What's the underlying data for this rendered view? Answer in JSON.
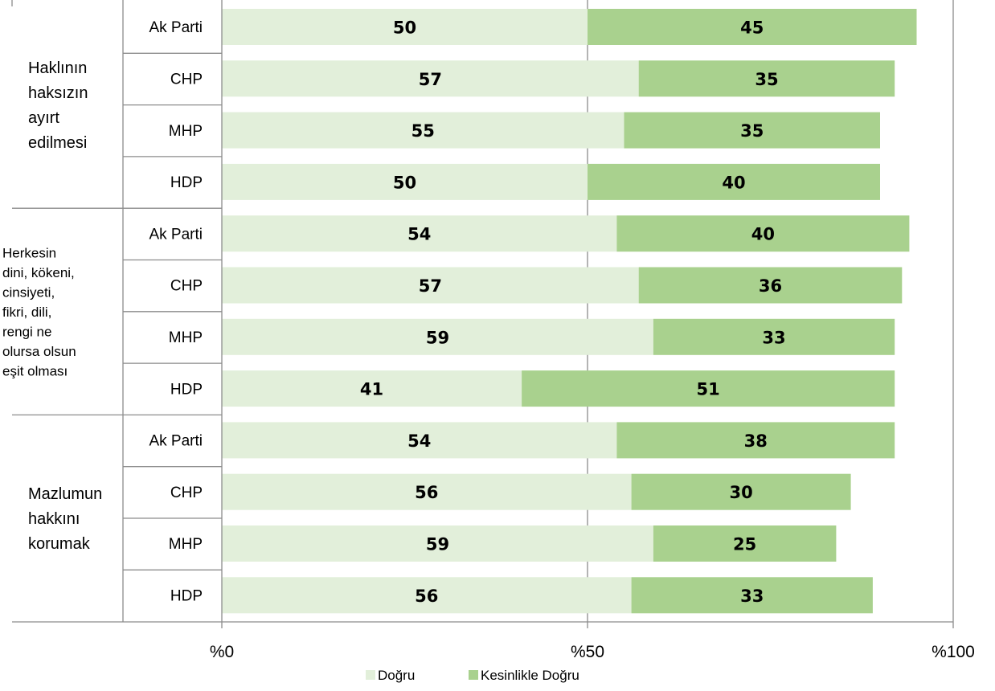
{
  "chart_data": {
    "type": "bar",
    "orientation": "horizontal",
    "stacked": true,
    "groups": [
      {
        "label_lines": [
          "Haklının",
          "haksızın",
          "ayırt",
          "edilmesi"
        ],
        "categories": [
          "Ak Parti",
          "CHP",
          "MHP",
          "HDP"
        ]
      },
      {
        "label_lines": [
          "Herkesin",
          "dini, kökeni,",
          "cinsiyeti,",
          "fikri, dili,",
          "rengi ne",
          "olursa olsun",
          "eşit olması"
        ],
        "categories": [
          "Ak Parti",
          "CHP",
          "MHP",
          "HDP"
        ]
      },
      {
        "label_lines": [
          "Mazlumun",
          "hakkını",
          "korumak"
        ],
        "categories": [
          "Ak Parti",
          "CHP",
          "MHP",
          "HDP"
        ]
      }
    ],
    "series": [
      {
        "name": "Doğru",
        "color": "#e2efda",
        "values": [
          50,
          57,
          55,
          50,
          54,
          57,
          59,
          41,
          54,
          56,
          59,
          56
        ]
      },
      {
        "name": "Kesinlikle Doğru",
        "color": "#a9d18e",
        "values": [
          45,
          35,
          35,
          40,
          40,
          36,
          33,
          51,
          38,
          30,
          25,
          33
        ]
      }
    ],
    "xlim": [
      0,
      100
    ],
    "x_ticks": [
      0,
      50,
      100
    ],
    "x_tick_labels": [
      "%0",
      "%50",
      "%100"
    ],
    "grid": "vertical",
    "legend_position": "bottom"
  }
}
